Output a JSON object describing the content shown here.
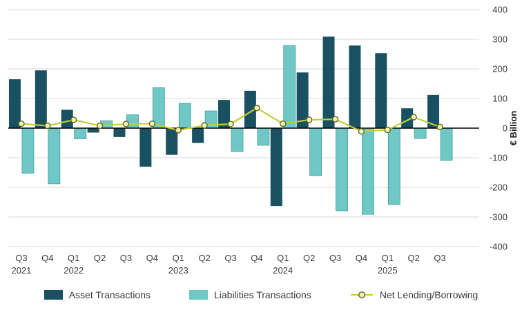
{
  "chart_data": {
    "type": "bar",
    "subtype": "bar+line combo, quarterly",
    "categories": [
      "Q3",
      "Q4",
      "Q1",
      "Q2",
      "Q3",
      "Q4",
      "Q1",
      "Q2",
      "Q3",
      "Q4",
      "Q1",
      "Q2",
      "Q3",
      "Q4",
      "Q1",
      "Q2",
      "Q3"
    ],
    "year_labels": [
      "2021",
      "",
      "2022",
      "",
      "",
      "",
      "2023",
      "",
      "",
      "",
      "2024",
      "",
      "",
      "",
      "2025",
      "",
      ""
    ],
    "series": [
      {
        "name": "Asset Transactions",
        "type": "bar",
        "color": "#1a5162",
        "values": [
          165,
          195,
          62,
          -15,
          -30,
          -130,
          -90,
          -50,
          95,
          126,
          -263,
          188,
          309,
          279,
          253,
          67,
          112
        ]
      },
      {
        "name": "Liabilities Transactions",
        "type": "bar",
        "color": "#6fc8c6",
        "border_color": "#3f9e9c",
        "values": [
          -152,
          -188,
          -36,
          25,
          45,
          137,
          84,
          58,
          -79,
          -58,
          279,
          -160,
          -279,
          -291,
          -258,
          -35,
          -109
        ]
      },
      {
        "name": "Net Lending/Borrowing",
        "type": "line",
        "color": "#c3ce34",
        "marker_fill": "#eef2ae",
        "marker_stroke": "#5f6620",
        "values": [
          15,
          8,
          28,
          8,
          14,
          15,
          -7,
          9,
          14,
          68,
          15,
          28,
          30,
          -11,
          -6,
          37,
          4
        ]
      }
    ],
    "title": "",
    "xlabel": "",
    "ylabel": "€ Billion",
    "ylim": [
      -400,
      400
    ],
    "ytick_step": 100,
    "grid": true,
    "grid_color": "#d9d9d9",
    "zero_line_color": "#000000",
    "text_color": "#3a3a3a",
    "legend_position": "bottom"
  }
}
